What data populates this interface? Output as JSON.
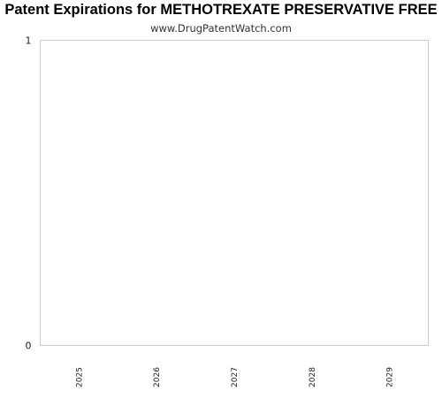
{
  "chart_data": {
    "type": "bar",
    "title": "Patent Expirations for METHOTREXATE PRESERVATIVE FREE",
    "subtitle": "www.DrugPatentWatch.com",
    "xlabel": "",
    "ylabel": "",
    "categories": [
      "2025",
      "2026",
      "2027",
      "2028",
      "2029"
    ],
    "values": [
      0,
      0,
      0,
      0,
      0
    ],
    "ylim": [
      0,
      1
    ],
    "y_ticks": [
      "0",
      "1"
    ],
    "grid": false,
    "legend": "none",
    "colors": {
      "frame": "#cccccc",
      "text": "#222222"
    }
  }
}
